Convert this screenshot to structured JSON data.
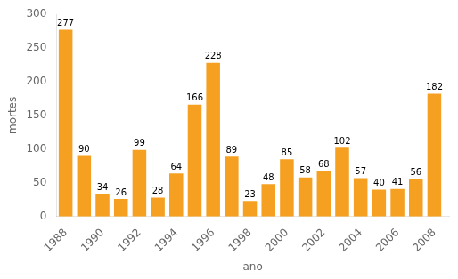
{
  "chart_data": {
    "type": "bar",
    "x": [
      1988,
      1989,
      1990,
      1991,
      1992,
      1993,
      1994,
      1995,
      1996,
      1997,
      1998,
      1999,
      2000,
      2001,
      2002,
      2003,
      2004,
      2005,
      2006,
      2007,
      2008
    ],
    "values": [
      277,
      90,
      34,
      26,
      99,
      28,
      64,
      166,
      228,
      89,
      23,
      48,
      85,
      58,
      68,
      102,
      57,
      40,
      41,
      56,
      182
    ],
    "color": "#F5A020",
    "xlabel": "ano",
    "ylabel": "mortes",
    "xlim": [
      1987.5,
      2008.8
    ],
    "xticks": [
      1988,
      1990,
      1992,
      1994,
      1996,
      1998,
      2000,
      2002,
      2004,
      2006,
      2008
    ],
    "ylim": [
      0,
      300
    ],
    "yticks": [
      0,
      50,
      100,
      150,
      200,
      250,
      300
    ],
    "grid": false,
    "data_labels": true
  }
}
